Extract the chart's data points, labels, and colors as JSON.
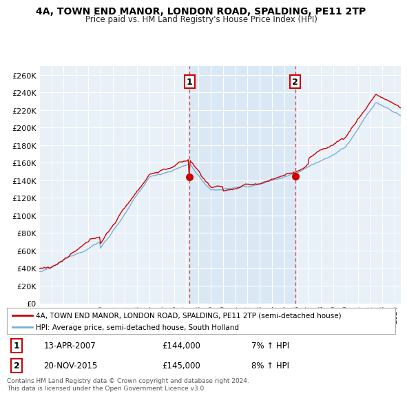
{
  "title": "4A, TOWN END MANOR, LONDON ROAD, SPALDING, PE11 2TP",
  "subtitle": "Price paid vs. HM Land Registry's House Price Index (HPI)",
  "legend_line1": "4A, TOWN END MANOR, LONDON ROAD, SPALDING, PE11 2TP (semi-detached house)",
  "legend_line2": "HPI: Average price, semi-detached house, South Holland",
  "annotation1_label": "1",
  "annotation1_date": "13-APR-2007",
  "annotation1_price": "£144,000",
  "annotation1_hpi": "7% ↑ HPI",
  "annotation2_label": "2",
  "annotation2_date": "20-NOV-2015",
  "annotation2_price": "£145,000",
  "annotation2_hpi": "8% ↑ HPI",
  "footnote": "Contains HM Land Registry data © Crown copyright and database right 2024.\nThis data is licensed under the Open Government Licence v3.0.",
  "price_color": "#cc0000",
  "hpi_color": "#7ab0d4",
  "annotation_color": "#cc0000",
  "plot_bg_color": "#e8f0f8",
  "highlight_bg_color": "#dae8f5",
  "grid_color": "#ffffff",
  "ylim": [
    0,
    270000
  ],
  "yticks": [
    0,
    20000,
    40000,
    60000,
    80000,
    100000,
    120000,
    140000,
    160000,
    180000,
    200000,
    220000,
    240000,
    260000
  ],
  "sale1_x": 2007.28,
  "sale1_y": 144000,
  "sale2_x": 2015.9,
  "sale2_y": 145000,
  "xlim_left": 1995,
  "xlim_right": 2024.5
}
